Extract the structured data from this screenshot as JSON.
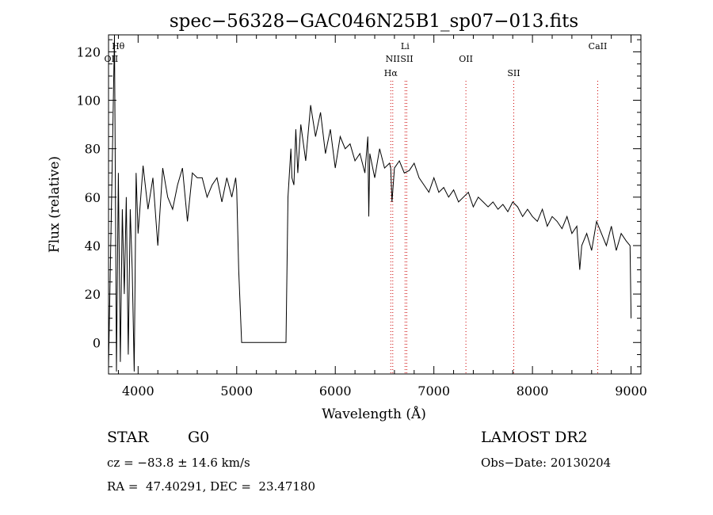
{
  "chart_data": {
    "type": "line",
    "title": "spec−56328−GAC046N25B1_sp07−013.fits",
    "xlabel": "Wavelength (Å)",
    "ylabel": "Flux (relative)",
    "xlim": [
      3700,
      9100
    ],
    "ylim": [
      -13,
      127
    ],
    "x_ticks": [
      4000,
      5000,
      6000,
      7000,
      8000,
      9000
    ],
    "y_ticks": [
      0,
      20,
      40,
      60,
      80,
      100,
      120
    ],
    "grid": false,
    "series": [
      {
        "name": "flux",
        "x": [
          3700,
          3720,
          3740,
          3760,
          3780,
          3800,
          3820,
          3840,
          3860,
          3880,
          3900,
          3920,
          3940,
          3960,
          3980,
          4000,
          4050,
          4100,
          4150,
          4200,
          4250,
          4300,
          4350,
          4400,
          4450,
          4500,
          4550,
          4600,
          4650,
          4700,
          4750,
          4800,
          4850,
          4900,
          4950,
          4990,
          5000,
          5020,
          5050,
          5500,
          5520,
          5550,
          5560,
          5580,
          5600,
          5620,
          5650,
          5700,
          5750,
          5800,
          5850,
          5900,
          5950,
          6000,
          6050,
          6100,
          6150,
          6200,
          6250,
          6300,
          6330,
          6340,
          6350,
          6400,
          6450,
          6500,
          6550,
          6562,
          6575,
          6600,
          6650,
          6700,
          6750,
          6800,
          6850,
          6900,
          6950,
          7000,
          7050,
          7100,
          7150,
          7200,
          7250,
          7300,
          7350,
          7400,
          7450,
          7500,
          7550,
          7600,
          7650,
          7700,
          7750,
          7800,
          7850,
          7900,
          7950,
          8000,
          8050,
          8100,
          8150,
          8200,
          8250,
          8300,
          8350,
          8400,
          8450,
          8480,
          8500,
          8550,
          8600,
          8650,
          8700,
          8750,
          8800,
          8850,
          8900,
          8950,
          8990,
          9000
        ],
        "values": [
          -10,
          35,
          80,
          128,
          -12,
          70,
          -8,
          55,
          20,
          60,
          -5,
          55,
          30,
          -12,
          70,
          45,
          73,
          55,
          68,
          40,
          72,
          60,
          55,
          65,
          72,
          50,
          70,
          68,
          68,
          60,
          65,
          68,
          58,
          68,
          60,
          68,
          63,
          30,
          0,
          0,
          60,
          80,
          68,
          65,
          88,
          70,
          90,
          75,
          98,
          85,
          95,
          78,
          88,
          72,
          85,
          80,
          82,
          75,
          78,
          70,
          85,
          52,
          78,
          68,
          80,
          72,
          74,
          72,
          58,
          72,
          75,
          70,
          71,
          74,
          68,
          65,
          62,
          68,
          62,
          64,
          60,
          63,
          58,
          60,
          62,
          56,
          60,
          58,
          56,
          58,
          55,
          57,
          54,
          58,
          56,
          52,
          55,
          52,
          50,
          55,
          48,
          52,
          50,
          47,
          52,
          45,
          48,
          30,
          40,
          45,
          38,
          50,
          45,
          40,
          48,
          38,
          45,
          42,
          40,
          10
        ]
      }
    ],
    "line_markers": [
      {
        "label": "Hθ",
        "x": 3798,
        "row": 0,
        "color": "#000000"
      },
      {
        "label": "OII",
        "x": 3727,
        "row": 1,
        "color": "#000000"
      },
      {
        "label": "Li",
        "x": 6708,
        "row": 0,
        "color": "#000000"
      },
      {
        "label": "NII",
        "x": 6583,
        "row": 1,
        "color": "#cc0000"
      },
      {
        "label": "SII",
        "x": 6725,
        "row": 1,
        "color": "#cc0000"
      },
      {
        "label": "OII",
        "x": 7325,
        "row": 1,
        "color": "#000000"
      },
      {
        "label": "Hα",
        "x": 6563,
        "row": 2,
        "color": "#cc0000"
      },
      {
        "label": "SII",
        "x": 7810,
        "row": 2,
        "color": "#cc0000"
      },
      {
        "label": "CaII",
        "x": 8662,
        "row": 0,
        "color": "#cc0000"
      }
    ],
    "dotted_lines_x": [
      6563,
      6583,
      6708,
      6725,
      7325,
      7810,
      8662
    ]
  },
  "footer": {
    "object_class": "STAR",
    "subclass": "G0",
    "survey": "LAMOST DR2",
    "redshift": "cz = −83.8 ± 14.6 km/s",
    "obs_date": "Obs−Date: 20130204",
    "coords": "RA =  47.40291, DEC =  23.47180"
  }
}
